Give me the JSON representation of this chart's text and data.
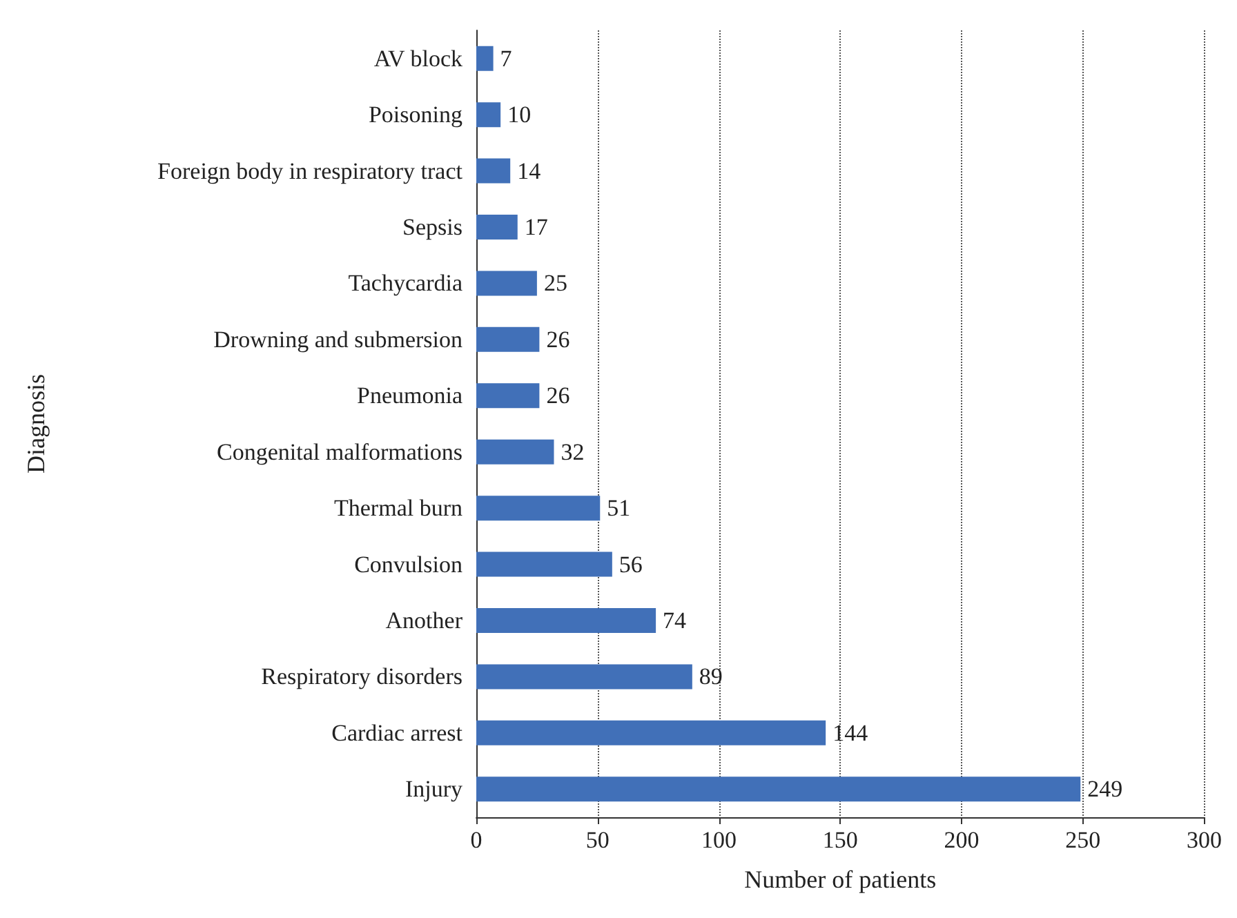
{
  "chart_data": {
    "type": "bar",
    "orientation": "horizontal",
    "xlabel": "Number of patients",
    "ylabel": "Diagnosis",
    "categories": [
      "AV block",
      "Poisoning",
      "Foreign body in respiratory tract",
      "Sepsis",
      "Tachycardia",
      "Drowning and submersion",
      "Pneumonia",
      "Congenital malformations",
      "Thermal burn",
      "Convulsion",
      "Another",
      "Respiratory disorders",
      "Cardiac arrest",
      "Injury"
    ],
    "values": [
      7,
      10,
      14,
      17,
      25,
      26,
      26,
      32,
      51,
      56,
      74,
      89,
      144,
      249
    ],
    "color": "#4170b8",
    "xlim": [
      0,
      300
    ],
    "xticks": [
      0,
      50,
      100,
      150,
      200,
      250,
      300
    ],
    "grid": "x",
    "data_labels": true
  }
}
